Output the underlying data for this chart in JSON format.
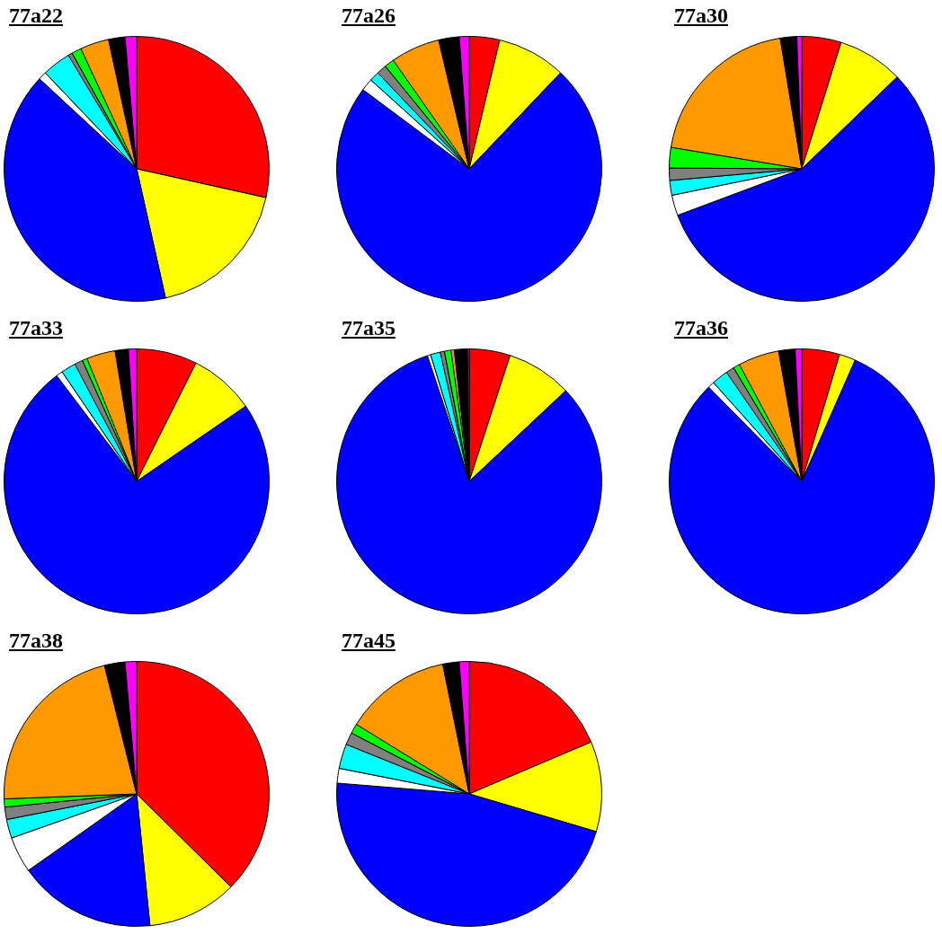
{
  "chart_data": [
    {
      "type": "pie",
      "title": "77a22",
      "categories": [
        null,
        null,
        null,
        null,
        null,
        null,
        null,
        null,
        null,
        null
      ],
      "values": [
        28.5,
        18,
        40.4,
        1,
        3.5,
        0.5,
        1.2,
        3.5,
        2,
        1.4
      ],
      "colors": [
        "#ff0000",
        "#ffff00",
        "#0000ff",
        "#ffffff",
        "#00ffff",
        "#808080",
        "#00ff00",
        "#ff9900",
        "#000000",
        "#ff00ff"
      ]
    },
    {
      "type": "pie",
      "title": "77a26",
      "categories": [
        null,
        null,
        null,
        null,
        null,
        null,
        null,
        null,
        null,
        null
      ],
      "values": [
        3.7,
        8.4,
        73.1,
        1.5,
        1.2,
        1.2,
        1.2,
        6,
        2.5,
        1.2
      ],
      "colors": [
        "#ff0000",
        "#ffff00",
        "#0000ff",
        "#ffffff",
        "#00ffff",
        "#808080",
        "#00ff00",
        "#ff9900",
        "#000000",
        "#ff00ff"
      ]
    },
    {
      "type": "pie",
      "title": "77a30",
      "categories": [
        null,
        null,
        null,
        null,
        null,
        null,
        null,
        null,
        null,
        null
      ],
      "values": [
        4.8,
        8,
        56.5,
        2.5,
        1.8,
        1.5,
        2.5,
        19.8,
        2,
        0.6
      ],
      "colors": [
        "#ff0000",
        "#ffff00",
        "#0000ff",
        "#ffffff",
        "#00ffff",
        "#808080",
        "#00ff00",
        "#ff9900",
        "#000000",
        "#ff00ff"
      ]
    },
    {
      "type": "pie",
      "title": "77a33",
      "categories": [
        null,
        null,
        null,
        null,
        null,
        null,
        null,
        null,
        null,
        null
      ],
      "values": [
        7.4,
        8,
        74.3,
        0.8,
        1.8,
        1,
        0.6,
        3.5,
        1.6,
        1
      ],
      "colors": [
        "#ff0000",
        "#ffff00",
        "#0000ff",
        "#ffffff",
        "#00ffff",
        "#808080",
        "#00ff00",
        "#ff9900",
        "#000000",
        "#ff00ff"
      ]
    },
    {
      "type": "pie",
      "title": "77a35",
      "categories": [
        null,
        null,
        null,
        null,
        null,
        null,
        null,
        null,
        null,
        null
      ],
      "values": [
        5,
        8,
        81.9,
        0.4,
        1.2,
        0.5,
        0.8,
        0.4,
        1.6,
        0.2
      ],
      "colors": [
        "#ff0000",
        "#ffff00",
        "#0000ff",
        "#ffffff",
        "#00ffff",
        "#808080",
        "#00ff00",
        "#ff9900",
        "#000000",
        "#ff00ff"
      ]
    },
    {
      "type": "pie",
      "title": "77a36",
      "categories": [
        null,
        null,
        null,
        null,
        null,
        null,
        null,
        null,
        null,
        null
      ],
      "values": [
        4.6,
        2,
        81,
        0.8,
        2,
        1,
        0.8,
        5,
        2,
        0.8
      ],
      "colors": [
        "#ff0000",
        "#ffff00",
        "#0000ff",
        "#ffffff",
        "#00ffff",
        "#808080",
        "#00ff00",
        "#ff9900",
        "#000000",
        "#ff00ff"
      ]
    },
    {
      "type": "pie",
      "title": "77a38",
      "categories": [
        null,
        null,
        null,
        null,
        null,
        null,
        null,
        null,
        null,
        null
      ],
      "values": [
        37.4,
        11,
        16.8,
        4.4,
        2.3,
        1.5,
        1,
        21.7,
        2.5,
        1.4
      ],
      "colors": [
        "#ff0000",
        "#ffff00",
        "#0000ff",
        "#ffffff",
        "#00ffff",
        "#808080",
        "#00ff00",
        "#ff9900",
        "#000000",
        "#ff00ff"
      ]
    },
    {
      "type": "pie",
      "title": "77a45",
      "categories": [
        null,
        null,
        null,
        null,
        null,
        null,
        null,
        null,
        null,
        null
      ],
      "values": [
        18.6,
        11,
        46.7,
        1.8,
        3,
        1.5,
        1.2,
        13,
        2,
        1.2
      ],
      "colors": [
        "#ff0000",
        "#ffff00",
        "#0000ff",
        "#ffffff",
        "#00ffff",
        "#808080",
        "#00ff00",
        "#ff9900",
        "#000000",
        "#ff00ff"
      ]
    }
  ]
}
